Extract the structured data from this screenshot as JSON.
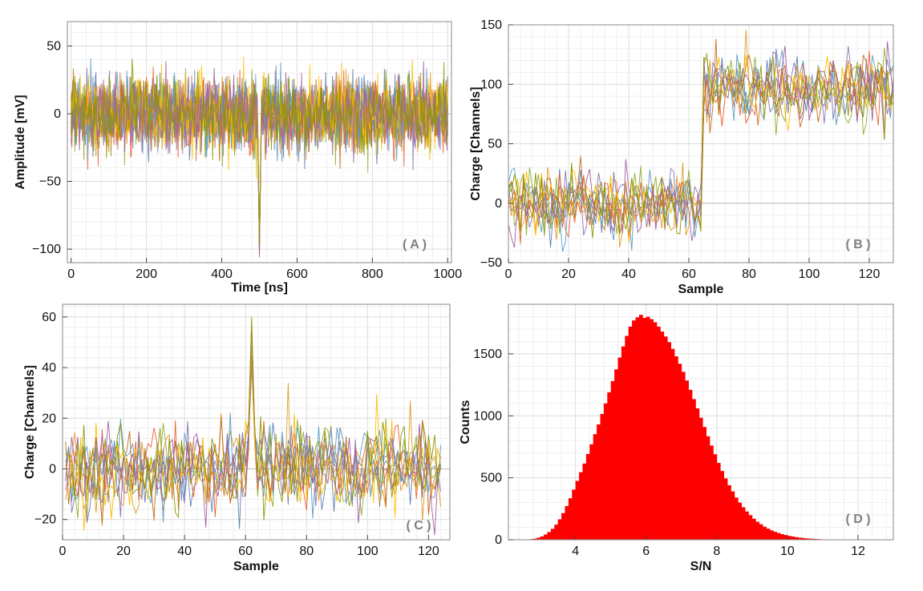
{
  "chart_data": [
    {
      "panel": "A",
      "type": "line",
      "tag": "( A )",
      "xlabel": "Time [ns]",
      "ylabel": "Amplitude [mV]",
      "xlim": [
        -10,
        1010
      ],
      "ylim": [
        -110,
        68
      ],
      "xticks": [
        0,
        200,
        400,
        600,
        800,
        1000
      ],
      "yticks": [
        -100,
        -50,
        0,
        50
      ],
      "grid": true,
      "n_traces": 10,
      "x_step": 2,
      "noise_sigma": 13,
      "noise_max": 55,
      "pulse": {
        "x": 500,
        "peak": -102,
        "width": 4
      },
      "series_colors": [
        "#5E81B5",
        "#E19C24",
        "#8FB032",
        "#EB6235",
        "#8778B3",
        "#C56E1A",
        "#5D9EC7",
        "#FFBF00",
        "#A5609D",
        "#929600"
      ]
    },
    {
      "panel": "B",
      "type": "line",
      "tag": "( B )",
      "xlabel": "Sample",
      "ylabel": "Charge [Channels]",
      "xlim": [
        0,
        128
      ],
      "ylim": [
        -50,
        150
      ],
      "xticks": [
        0,
        20,
        40,
        60,
        80,
        100,
        120
      ],
      "yticks": [
        -50,
        0,
        50,
        100,
        150
      ],
      "grid": true,
      "n_traces": 10,
      "noise_sigma": 14,
      "baseline_before": 0,
      "baseline_after": 97,
      "step_at": 64.5,
      "series_colors": [
        "#5E81B5",
        "#E19C24",
        "#8FB032",
        "#EB6235",
        "#8778B3",
        "#C56E1A",
        "#5D9EC7",
        "#FFBF00",
        "#A5609D",
        "#929600"
      ]
    },
    {
      "panel": "C",
      "type": "line",
      "tag": "( C )",
      "xlabel": "Sample",
      "ylabel": "Charge [Channels]",
      "xlim": [
        0,
        127
      ],
      "ylim": [
        -28,
        65
      ],
      "xticks": [
        0,
        20,
        40,
        60,
        80,
        100,
        120
      ],
      "yticks": [
        -20,
        0,
        20,
        40,
        60
      ],
      "grid": true,
      "n_traces": 10,
      "x_range": [
        1,
        124
      ],
      "noise_sigma": 9,
      "pulse": {
        "x": 62,
        "peak_min": 40,
        "peak_max": 60
      },
      "series_colors": [
        "#5E81B5",
        "#E19C24",
        "#8FB032",
        "#EB6235",
        "#8778B3",
        "#C56E1A",
        "#5D9EC7",
        "#FFBF00",
        "#A5609D",
        "#929600"
      ]
    },
    {
      "panel": "D",
      "type": "bar",
      "histogram": true,
      "tag": "( D )",
      "xlabel": "S/N",
      "ylabel": "Counts",
      "xlim": [
        2.1,
        13
      ],
      "ylim": [
        0,
        1900
      ],
      "xticks": [
        4,
        6,
        8,
        10,
        12
      ],
      "yticks": [
        0,
        500,
        1000,
        1500
      ],
      "grid": true,
      "bin_width": 0.1,
      "bin_start": 2.6,
      "values": [
        2,
        5,
        9,
        16,
        27,
        42,
        62,
        88,
        122,
        165,
        215,
        272,
        335,
        405,
        475,
        545,
        615,
        692,
        770,
        852,
        930,
        1015,
        1100,
        1190,
        1280,
        1375,
        1470,
        1560,
        1645,
        1720,
        1770,
        1795,
        1815,
        1790,
        1800,
        1780,
        1755,
        1720,
        1680,
        1640,
        1595,
        1540,
        1480,
        1420,
        1355,
        1285,
        1210,
        1135,
        1060,
        985,
        910,
        835,
        760,
        690,
        620,
        555,
        495,
        440,
        390,
        340,
        300,
        262,
        228,
        198,
        170,
        145,
        125,
        105,
        90,
        76,
        64,
        54,
        45,
        38,
        31,
        26,
        21,
        17,
        14,
        11,
        9,
        7,
        6,
        4,
        3,
        3,
        2,
        2,
        1,
        1
      ],
      "bar_color": "#FF0000"
    }
  ]
}
